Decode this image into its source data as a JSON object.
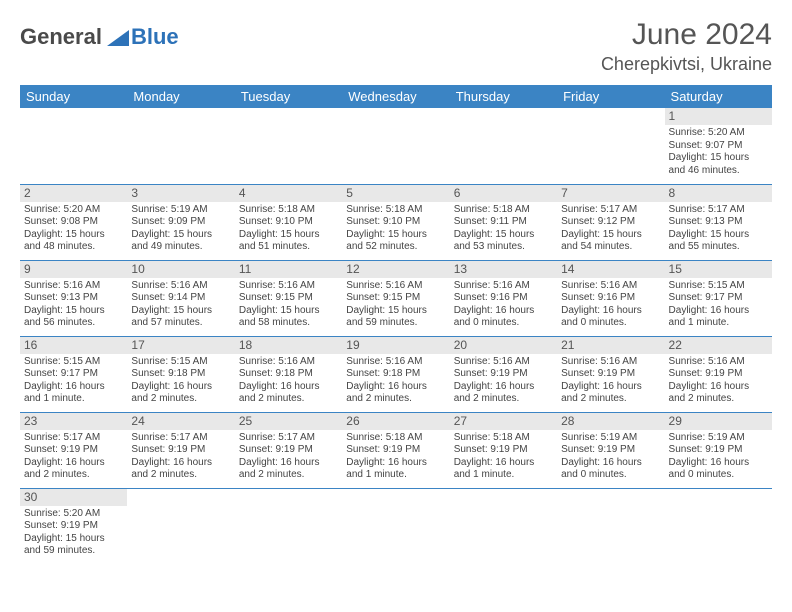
{
  "logo": {
    "text1": "General",
    "text2": "Blue",
    "color_dark": "#4a4a4a",
    "color_blue": "#2d72b8"
  },
  "title": "June 2024",
  "location": "Cherepkivtsi, Ukraine",
  "colors": {
    "header_bg": "#3b84c4",
    "header_fg": "#ffffff",
    "rule": "#3b84c4",
    "daynum_bg": "#e8e8e8"
  },
  "weekdays": [
    "Sunday",
    "Monday",
    "Tuesday",
    "Wednesday",
    "Thursday",
    "Friday",
    "Saturday"
  ],
  "weeks": [
    [
      null,
      null,
      null,
      null,
      null,
      null,
      {
        "n": "1",
        "sr": "Sunrise: 5:20 AM",
        "ss": "Sunset: 9:07 PM",
        "dl": "Daylight: 15 hours and 46 minutes."
      }
    ],
    [
      {
        "n": "2",
        "sr": "Sunrise: 5:20 AM",
        "ss": "Sunset: 9:08 PM",
        "dl": "Daylight: 15 hours and 48 minutes."
      },
      {
        "n": "3",
        "sr": "Sunrise: 5:19 AM",
        "ss": "Sunset: 9:09 PM",
        "dl": "Daylight: 15 hours and 49 minutes."
      },
      {
        "n": "4",
        "sr": "Sunrise: 5:18 AM",
        "ss": "Sunset: 9:10 PM",
        "dl": "Daylight: 15 hours and 51 minutes."
      },
      {
        "n": "5",
        "sr": "Sunrise: 5:18 AM",
        "ss": "Sunset: 9:10 PM",
        "dl": "Daylight: 15 hours and 52 minutes."
      },
      {
        "n": "6",
        "sr": "Sunrise: 5:18 AM",
        "ss": "Sunset: 9:11 PM",
        "dl": "Daylight: 15 hours and 53 minutes."
      },
      {
        "n": "7",
        "sr": "Sunrise: 5:17 AM",
        "ss": "Sunset: 9:12 PM",
        "dl": "Daylight: 15 hours and 54 minutes."
      },
      {
        "n": "8",
        "sr": "Sunrise: 5:17 AM",
        "ss": "Sunset: 9:13 PM",
        "dl": "Daylight: 15 hours and 55 minutes."
      }
    ],
    [
      {
        "n": "9",
        "sr": "Sunrise: 5:16 AM",
        "ss": "Sunset: 9:13 PM",
        "dl": "Daylight: 15 hours and 56 minutes."
      },
      {
        "n": "10",
        "sr": "Sunrise: 5:16 AM",
        "ss": "Sunset: 9:14 PM",
        "dl": "Daylight: 15 hours and 57 minutes."
      },
      {
        "n": "11",
        "sr": "Sunrise: 5:16 AM",
        "ss": "Sunset: 9:15 PM",
        "dl": "Daylight: 15 hours and 58 minutes."
      },
      {
        "n": "12",
        "sr": "Sunrise: 5:16 AM",
        "ss": "Sunset: 9:15 PM",
        "dl": "Daylight: 15 hours and 59 minutes."
      },
      {
        "n": "13",
        "sr": "Sunrise: 5:16 AM",
        "ss": "Sunset: 9:16 PM",
        "dl": "Daylight: 16 hours and 0 minutes."
      },
      {
        "n": "14",
        "sr": "Sunrise: 5:16 AM",
        "ss": "Sunset: 9:16 PM",
        "dl": "Daylight: 16 hours and 0 minutes."
      },
      {
        "n": "15",
        "sr": "Sunrise: 5:15 AM",
        "ss": "Sunset: 9:17 PM",
        "dl": "Daylight: 16 hours and 1 minute."
      }
    ],
    [
      {
        "n": "16",
        "sr": "Sunrise: 5:15 AM",
        "ss": "Sunset: 9:17 PM",
        "dl": "Daylight: 16 hours and 1 minute."
      },
      {
        "n": "17",
        "sr": "Sunrise: 5:15 AM",
        "ss": "Sunset: 9:18 PM",
        "dl": "Daylight: 16 hours and 2 minutes."
      },
      {
        "n": "18",
        "sr": "Sunrise: 5:16 AM",
        "ss": "Sunset: 9:18 PM",
        "dl": "Daylight: 16 hours and 2 minutes."
      },
      {
        "n": "19",
        "sr": "Sunrise: 5:16 AM",
        "ss": "Sunset: 9:18 PM",
        "dl": "Daylight: 16 hours and 2 minutes."
      },
      {
        "n": "20",
        "sr": "Sunrise: 5:16 AM",
        "ss": "Sunset: 9:19 PM",
        "dl": "Daylight: 16 hours and 2 minutes."
      },
      {
        "n": "21",
        "sr": "Sunrise: 5:16 AM",
        "ss": "Sunset: 9:19 PM",
        "dl": "Daylight: 16 hours and 2 minutes."
      },
      {
        "n": "22",
        "sr": "Sunrise: 5:16 AM",
        "ss": "Sunset: 9:19 PM",
        "dl": "Daylight: 16 hours and 2 minutes."
      }
    ],
    [
      {
        "n": "23",
        "sr": "Sunrise: 5:17 AM",
        "ss": "Sunset: 9:19 PM",
        "dl": "Daylight: 16 hours and 2 minutes."
      },
      {
        "n": "24",
        "sr": "Sunrise: 5:17 AM",
        "ss": "Sunset: 9:19 PM",
        "dl": "Daylight: 16 hours and 2 minutes."
      },
      {
        "n": "25",
        "sr": "Sunrise: 5:17 AM",
        "ss": "Sunset: 9:19 PM",
        "dl": "Daylight: 16 hours and 2 minutes."
      },
      {
        "n": "26",
        "sr": "Sunrise: 5:18 AM",
        "ss": "Sunset: 9:19 PM",
        "dl": "Daylight: 16 hours and 1 minute."
      },
      {
        "n": "27",
        "sr": "Sunrise: 5:18 AM",
        "ss": "Sunset: 9:19 PM",
        "dl": "Daylight: 16 hours and 1 minute."
      },
      {
        "n": "28",
        "sr": "Sunrise: 5:19 AM",
        "ss": "Sunset: 9:19 PM",
        "dl": "Daylight: 16 hours and 0 minutes."
      },
      {
        "n": "29",
        "sr": "Sunrise: 5:19 AM",
        "ss": "Sunset: 9:19 PM",
        "dl": "Daylight: 16 hours and 0 minutes."
      }
    ],
    [
      {
        "n": "30",
        "sr": "Sunrise: 5:20 AM",
        "ss": "Sunset: 9:19 PM",
        "dl": "Daylight: 15 hours and 59 minutes."
      },
      null,
      null,
      null,
      null,
      null,
      null
    ]
  ]
}
